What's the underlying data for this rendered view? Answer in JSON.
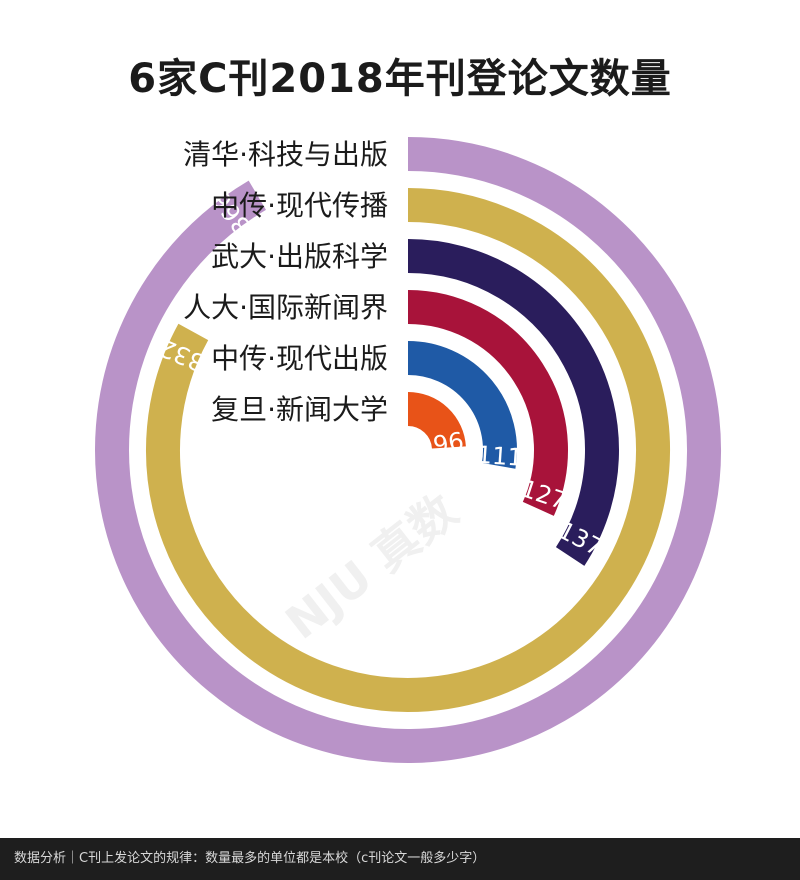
{
  "title": "6家C刊2018年刊登论文数量",
  "watermark": "NJU 真数",
  "footer": "数据分析｜C刊上发论文的规律：数量最多的单位都是本校（c刊论文一般多少字）",
  "colors": {
    "清华·科技与出版": "#b993c8",
    "中传·现代传播": "#cfb14e",
    "武大·出版科学": "#2a1d5c",
    "人大·国际新闻界": "#a8133a",
    "中传·现代出版": "#1f5aa6",
    "复旦·新闻大学": "#e85318"
  },
  "chart_data": {
    "type": "radial-bar",
    "title": "6家C刊2018年刊登论文数量",
    "categories": [
      "清华·科技与出版",
      "中传·现代传播",
      "武大·出版科学",
      "人大·国际新闻界",
      "中传·现代出版",
      "复旦·新闻大学"
    ],
    "values": [
      366,
      332,
      137,
      127,
      111,
      96
    ],
    "data_labels": [
      "366",
      "332",
      "137",
      "127",
      "111",
      "96"
    ]
  }
}
